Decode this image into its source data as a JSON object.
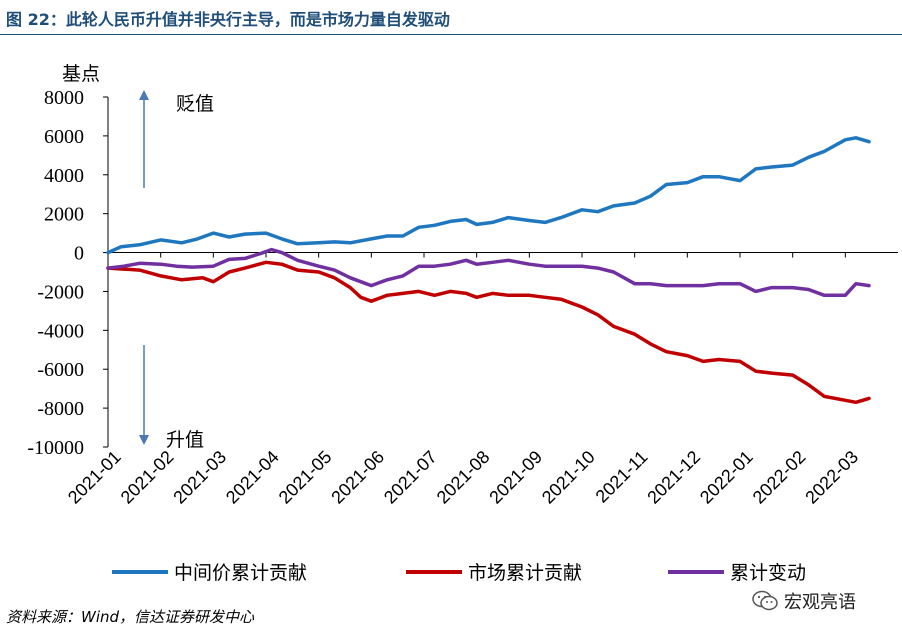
{
  "header": {
    "title": "图 22：此轮人民币升值并非央行主导，而是市场力量自发驱动"
  },
  "footer": {
    "source": "资料来源：Wind，信达证券研发中心",
    "watermark": "宏观亮语"
  },
  "chart_data": {
    "type": "line",
    "ylabel": "基点",
    "ylim": [
      -10000,
      8000
    ],
    "yticks": [
      8000,
      6000,
      4000,
      2000,
      0,
      -2000,
      -4000,
      -6000,
      -8000,
      -10000
    ],
    "xlim": [
      0,
      15
    ],
    "xticks": [
      "2021-01",
      "2021-02",
      "2021-03",
      "2021-04",
      "2021-05",
      "2021-06",
      "2021-07",
      "2021-08",
      "2021-09",
      "2021-10",
      "2021-11",
      "2021-12",
      "2022-01",
      "2022-02",
      "2022-03"
    ],
    "annotations": {
      "up": "贬值",
      "down": "升值"
    },
    "legend_position": "bottom",
    "grid": false,
    "series": [
      {
        "name": "中间价累计贡献",
        "color": "#1f77c0",
        "points": [
          [
            0,
            0
          ],
          [
            0.25,
            300
          ],
          [
            0.6,
            400
          ],
          [
            1,
            650
          ],
          [
            1.4,
            500
          ],
          [
            1.7,
            700
          ],
          [
            2,
            1000
          ],
          [
            2.3,
            800
          ],
          [
            2.6,
            950
          ],
          [
            3,
            1000
          ],
          [
            3.3,
            700
          ],
          [
            3.6,
            450
          ],
          [
            4,
            500
          ],
          [
            4.3,
            550
          ],
          [
            4.6,
            500
          ],
          [
            5,
            700
          ],
          [
            5.3,
            850
          ],
          [
            5.6,
            850
          ],
          [
            5.9,
            1300
          ],
          [
            6.2,
            1400
          ],
          [
            6.5,
            1600
          ],
          [
            6.8,
            1700
          ],
          [
            7,
            1450
          ],
          [
            7.3,
            1550
          ],
          [
            7.6,
            1800
          ],
          [
            8,
            1650
          ],
          [
            8.3,
            1550
          ],
          [
            8.6,
            1800
          ],
          [
            9,
            2200
          ],
          [
            9.3,
            2100
          ],
          [
            9.6,
            2400
          ],
          [
            10,
            2550
          ],
          [
            10.3,
            2900
          ],
          [
            10.6,
            3500
          ],
          [
            11,
            3600
          ],
          [
            11.3,
            3900
          ],
          [
            11.6,
            3900
          ],
          [
            12,
            3700
          ],
          [
            12.3,
            4300
          ],
          [
            12.6,
            4400
          ],
          [
            13,
            4500
          ],
          [
            13.3,
            4900
          ],
          [
            13.6,
            5200
          ],
          [
            14,
            5800
          ],
          [
            14.2,
            5900
          ],
          [
            14.45,
            5700
          ]
        ]
      },
      {
        "name": "市场累计贡献",
        "color": "#c00000",
        "points": [
          [
            0,
            -800
          ],
          [
            0.3,
            -850
          ],
          [
            0.6,
            -900
          ],
          [
            1,
            -1200
          ],
          [
            1.4,
            -1400
          ],
          [
            1.8,
            -1300
          ],
          [
            2,
            -1500
          ],
          [
            2.3,
            -1000
          ],
          [
            2.6,
            -800
          ],
          [
            3,
            -500
          ],
          [
            3.3,
            -600
          ],
          [
            3.6,
            -900
          ],
          [
            4,
            -1000
          ],
          [
            4.3,
            -1300
          ],
          [
            4.6,
            -1800
          ],
          [
            4.8,
            -2300
          ],
          [
            5,
            -2500
          ],
          [
            5.3,
            -2200
          ],
          [
            5.6,
            -2100
          ],
          [
            5.9,
            -2000
          ],
          [
            6.2,
            -2200
          ],
          [
            6.5,
            -2000
          ],
          [
            6.8,
            -2100
          ],
          [
            7,
            -2300
          ],
          [
            7.3,
            -2100
          ],
          [
            7.6,
            -2200
          ],
          [
            8,
            -2200
          ],
          [
            8.3,
            -2300
          ],
          [
            8.6,
            -2400
          ],
          [
            9,
            -2800
          ],
          [
            9.3,
            -3200
          ],
          [
            9.6,
            -3800
          ],
          [
            10,
            -4200
          ],
          [
            10.3,
            -4700
          ],
          [
            10.6,
            -5100
          ],
          [
            11,
            -5300
          ],
          [
            11.3,
            -5600
          ],
          [
            11.6,
            -5500
          ],
          [
            12,
            -5600
          ],
          [
            12.3,
            -6100
          ],
          [
            12.6,
            -6200
          ],
          [
            13,
            -6300
          ],
          [
            13.3,
            -6800
          ],
          [
            13.6,
            -7400
          ],
          [
            14,
            -7600
          ],
          [
            14.2,
            -7700
          ],
          [
            14.45,
            -7500
          ]
        ]
      },
      {
        "name": "累计变动",
        "color": "#7030a0",
        "points": [
          [
            0,
            -800
          ],
          [
            0.3,
            -700
          ],
          [
            0.6,
            -550
          ],
          [
            1,
            -600
          ],
          [
            1.3,
            -700
          ],
          [
            1.6,
            -750
          ],
          [
            2,
            -700
          ],
          [
            2.3,
            -350
          ],
          [
            2.6,
            -300
          ],
          [
            2.9,
            -50
          ],
          [
            3.1,
            150
          ],
          [
            3.3,
            0
          ],
          [
            3.6,
            -400
          ],
          [
            4,
            -700
          ],
          [
            4.3,
            -900
          ],
          [
            4.6,
            -1300
          ],
          [
            4.9,
            -1600
          ],
          [
            5,
            -1700
          ],
          [
            5.3,
            -1400
          ],
          [
            5.6,
            -1200
          ],
          [
            5.9,
            -700
          ],
          [
            6.2,
            -700
          ],
          [
            6.5,
            -600
          ],
          [
            6.8,
            -400
          ],
          [
            7,
            -600
          ],
          [
            7.3,
            -500
          ],
          [
            7.6,
            -400
          ],
          [
            8,
            -600
          ],
          [
            8.3,
            -700
          ],
          [
            8.6,
            -700
          ],
          [
            9,
            -700
          ],
          [
            9.3,
            -800
          ],
          [
            9.6,
            -1000
          ],
          [
            10,
            -1600
          ],
          [
            10.3,
            -1600
          ],
          [
            10.6,
            -1700
          ],
          [
            11,
            -1700
          ],
          [
            11.3,
            -1700
          ],
          [
            11.6,
            -1600
          ],
          [
            12,
            -1600
          ],
          [
            12.3,
            -2000
          ],
          [
            12.6,
            -1800
          ],
          [
            13,
            -1800
          ],
          [
            13.3,
            -1900
          ],
          [
            13.6,
            -2200
          ],
          [
            14,
            -2200
          ],
          [
            14.2,
            -1600
          ],
          [
            14.45,
            -1700
          ]
        ]
      }
    ]
  }
}
